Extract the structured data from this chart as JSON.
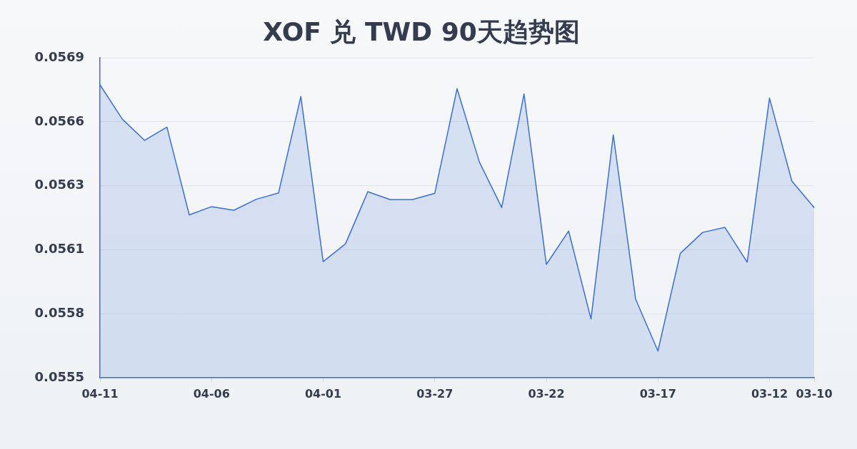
{
  "chart_data": {
    "type": "area",
    "title": "XOF 兑 TWD 90天趋势图",
    "categories": [
      "04-11",
      null,
      null,
      null,
      null,
      "04-06",
      null,
      null,
      null,
      null,
      "04-01",
      null,
      null,
      null,
      null,
      "03-27",
      null,
      null,
      null,
      null,
      "03-22",
      null,
      null,
      null,
      null,
      "03-17",
      null,
      null,
      null,
      null,
      "03-12",
      null,
      "03-10"
    ],
    "series": [
      {
        "color": "#3b6fd6",
        "values": [
          0.056782,
          0.056632,
          0.056539,
          0.056597,
          0.056213,
          0.056249,
          0.056233,
          0.056281,
          0.056309,
          0.056731,
          0.056008,
          0.056086,
          0.056314,
          0.05628,
          0.05628,
          0.056307,
          0.056765,
          0.056444,
          0.056245,
          0.056742,
          0.055996,
          0.056142,
          0.055757,
          0.056563,
          0.055844,
          0.055617,
          0.056044,
          0.056136,
          0.056158,
          0.056006,
          0.056724,
          0.056361,
          0.056245
        ]
      }
    ],
    "ylim": [
      0.0555,
      0.0569
    ],
    "yticks": [
      0.0555,
      {
        "value": 0.05578,
        "label": "0.0558"
      },
      {
        "value": 0.05606,
        "label": "0.0561"
      },
      {
        "value": 0.05634,
        "label": "0.0563"
      },
      {
        "value": 0.05662,
        "label": "0.0566"
      },
      0.0569
    ],
    "grid": "y",
    "marker": "none"
  }
}
